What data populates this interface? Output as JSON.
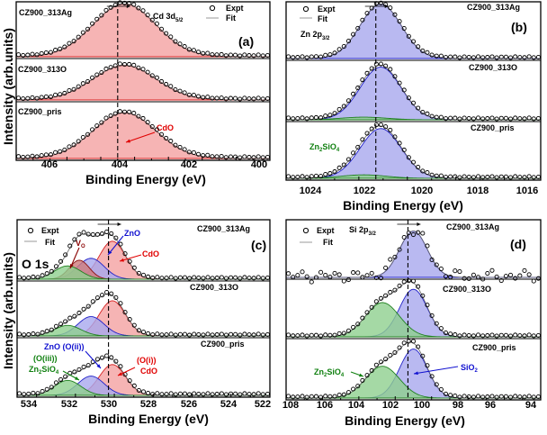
{
  "chart_data": [
    {
      "type": "line",
      "panel": "(a)",
      "core_level": "Cd 3d5/2",
      "xlabel": "Binding Energy (eV)",
      "ylabel": "Intensity (arb.units)",
      "xlim": [
        400,
        407.5
      ],
      "x_reversed": true,
      "x_ticks": [
        "406",
        "404",
        "402",
        "400"
      ],
      "legend": [
        "Expt",
        "Fit"
      ],
      "reference_line_ev": 404.5,
      "samples": [
        "CZ900_313Ag",
        "CZ900_313O",
        "CZ900_pris"
      ],
      "components": [
        {
          "name": "CdO",
          "center": 404.3,
          "fwhm": 2.2,
          "color": "#f4a1a1",
          "edge": "#d62020",
          "scale": 1.0
        }
      ],
      "annotations": [
        {
          "text": "CdO",
          "panel_index": 2,
          "color": "#e00000"
        }
      ]
    },
    {
      "type": "line",
      "panel": "(b)",
      "core_level": "Zn 2p3/2",
      "xlabel": "Binding Energy (eV)",
      "ylabel": "",
      "xlim": [
        1014.5,
        1025
      ],
      "x_reversed": true,
      "x_ticks": [
        "1024",
        "1022",
        "1020",
        "1018",
        "1016"
      ],
      "legend": [
        "Expt",
        "Fit"
      ],
      "reference_line_ev": 1021.3,
      "samples": [
        "CZ900_313Ag",
        "CZ900_313O",
        "CZ900_pris"
      ],
      "components": [
        {
          "name": "ZnO",
          "center": 1021.1,
          "fwhm": 2.0,
          "color": "#a7a7ee",
          "edge": "#2020c8",
          "scale": 1.0
        },
        {
          "name": "Zn2SiO4",
          "center": 1021.8,
          "fwhm": 2.2,
          "color": "#8fd08f",
          "edge": "#208020",
          "scale": 0.07
        }
      ],
      "annotations": [
        {
          "text": "Zn2SiO4",
          "panel_index": 2,
          "color": "#108010"
        }
      ]
    },
    {
      "type": "line",
      "panel": "(c)",
      "core_level": "O 1s",
      "xlabel": "Binding Energy (eV)",
      "ylabel": "Intensity (arb.units)",
      "xlim": [
        522,
        535
      ],
      "x_reversed": true,
      "x_ticks": [
        "534",
        "532",
        "530",
        "528",
        "526",
        "524",
        "522"
      ],
      "legend": [
        "Expt",
        "Fit"
      ],
      "reference_line_ev": 530.3,
      "samples": [
        "CZ900_313Ag",
        "CZ900_313O",
        "CZ900_pris"
      ],
      "components": [
        {
          "name": "CdO",
          "center": 530.1,
          "fwhm": 1.6,
          "color": "#f4a1a1",
          "edge": "#d62020",
          "scale": 1.0
        },
        {
          "name": "ZnO",
          "center": 531.2,
          "fwhm": 1.6,
          "color": "#a7a7ee",
          "edge": "#2020c8",
          "scale": 0.6
        },
        {
          "name": "Zn2SiO4",
          "center": 532.4,
          "fwhm": 1.6,
          "color": "#8fd08f",
          "edge": "#208020",
          "scale": 0.3
        },
        {
          "name": "VO",
          "center": 531.8,
          "fwhm": 1.2,
          "color": "#d07a7a",
          "edge": "#8a1010",
          "scale": 0.35
        }
      ],
      "annotations": [
        {
          "text": "VO",
          "panel_index": 0,
          "color": "#8a0000"
        },
        {
          "text": "ZnO",
          "panel_index": 0,
          "color": "#1010d0"
        },
        {
          "text": "CdO",
          "panel_index": 0,
          "color": "#e00000"
        },
        {
          "text": "ZnO (O(ii))",
          "panel_index": 2,
          "color": "#1010d0"
        },
        {
          "text": "(O(iii))",
          "panel_index": 2,
          "color": "#108010"
        },
        {
          "text": "Zn2SiO4",
          "panel_index": 2,
          "color": "#108010"
        },
        {
          "text": "(O(i))",
          "panel_index": 2,
          "color": "#e00000"
        },
        {
          "text": "CdO",
          "panel_index": 2,
          "color": "#e00000"
        }
      ],
      "panel_label": "O 1s"
    },
    {
      "type": "line",
      "panel": "(d)",
      "core_level": "Si 2p3/2",
      "xlabel": "Binding Energy (eV)",
      "ylabel": "",
      "xlim": [
        94,
        108
      ],
      "x_reversed": true,
      "x_ticks": [
        "108",
        "106",
        "104",
        "102",
        "100",
        "98",
        "96",
        "94"
      ],
      "legend": [
        "Expt",
        "Fit"
      ],
      "reference_line_ev": 101.3,
      "samples": [
        "CZ900_313Ag",
        "CZ900_313O",
        "CZ900_pris"
      ],
      "components": [
        {
          "name": "SiO2",
          "center": 101.0,
          "fwhm": 1.8,
          "color": "#a7a7ee",
          "edge": "#2020c8",
          "scale": 1.0
        },
        {
          "name": "Zn2SiO4",
          "center": 102.7,
          "fwhm": 2.2,
          "color": "#8fd08f",
          "edge": "#208020",
          "scale": 0.72
        }
      ],
      "annotations": [
        {
          "text": "Zn2SiO4",
          "panel_index": 2,
          "color": "#108010"
        },
        {
          "text": "SiO2",
          "panel_index": 2,
          "color": "#1010d0"
        }
      ]
    }
  ]
}
